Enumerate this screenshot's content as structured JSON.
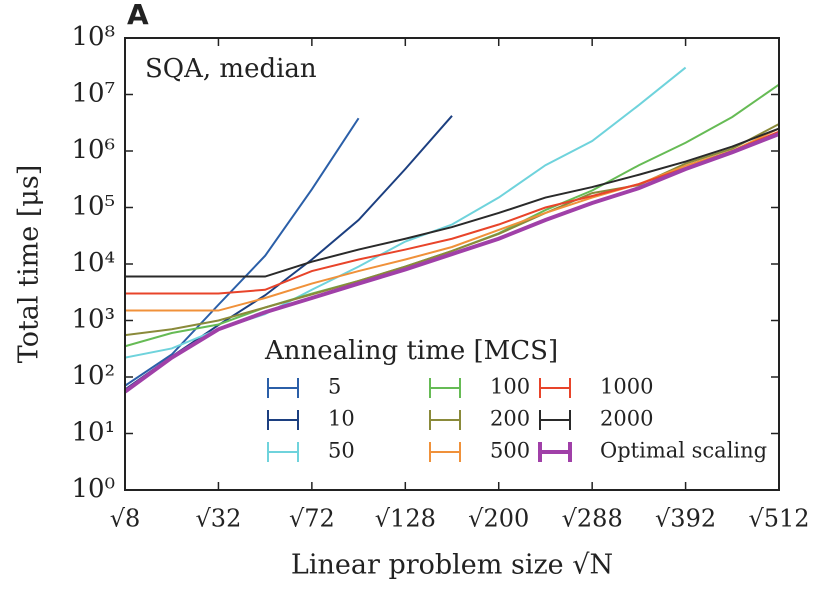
{
  "chart_data": {
    "type": "line",
    "panel_label": "A",
    "annotation": "SQA, median",
    "x_label": "Linear problem size √N",
    "y_label": "Total time [μs]",
    "legend_title": "Annealing time [MCS]",
    "log_y": true,
    "x": [
      2.828,
      4.243,
      5.657,
      7.071,
      8.485,
      9.899,
      11.314,
      12.728,
      14.142,
      15.556,
      16.971,
      18.385,
      19.799,
      21.213,
      22.627
    ],
    "xlim": [
      2.828,
      22.627
    ],
    "xticks": [
      {
        "value": 2.828,
        "label": "√8"
      },
      {
        "value": 5.657,
        "label": "√32"
      },
      {
        "value": 8.485,
        "label": "√72"
      },
      {
        "value": 11.314,
        "label": "√128"
      },
      {
        "value": 14.142,
        "label": "√200"
      },
      {
        "value": 16.971,
        "label": "√288"
      },
      {
        "value": 19.799,
        "label": "√392"
      },
      {
        "value": 22.627,
        "label": "√512"
      }
    ],
    "ylim": [
      1,
      100000000
    ],
    "yticks": [
      {
        "value": 1,
        "label": "10⁰"
      },
      {
        "value": 10,
        "label": "10¹"
      },
      {
        "value": 100,
        "label": "10²"
      },
      {
        "value": 1000,
        "label": "10³"
      },
      {
        "value": 10000,
        "label": "10⁴"
      },
      {
        "value": 100000,
        "label": "10⁵"
      },
      {
        "value": 1000000,
        "label": "10⁶"
      },
      {
        "value": 10000000,
        "label": "10⁷"
      },
      {
        "value": 100000000,
        "label": "10⁸"
      }
    ],
    "series": [
      {
        "name": "5",
        "color": "#2b5fa8",
        "values": [
          70,
          250,
          1900,
          14000,
          210000,
          3800000,
          null,
          null,
          null,
          null,
          null,
          null,
          null,
          null,
          null
        ]
      },
      {
        "name": "10",
        "color": "#1c3f80",
        "values": [
          60,
          230,
          830,
          2800,
          12000,
          60000,
          480000,
          4200000,
          null,
          null,
          null,
          null,
          null,
          null,
          null
        ]
      },
      {
        "name": "50",
        "color": "#6fd3dc",
        "values": [
          220,
          320,
          700,
          1300,
          3500,
          9000,
          25000,
          50000,
          150000,
          560000,
          1500000,
          6500000,
          30000000,
          null,
          null
        ]
      },
      {
        "name": "100",
        "color": "#66bb55",
        "values": [
          350,
          600,
          850,
          1700,
          3000,
          5000,
          9000,
          17000,
          35000,
          90000,
          200000,
          560000,
          1400000,
          4000000,
          15000000
        ]
      },
      {
        "name": "200",
        "color": "#8a8a3a",
        "values": [
          550,
          700,
          1000,
          1700,
          2900,
          5000,
          9000,
          17000,
          34000,
          80000,
          180000,
          250000,
          600000,
          1100000,
          3000000
        ]
      },
      {
        "name": "500",
        "color": "#f0913a",
        "values": [
          1500,
          1500,
          1500,
          2500,
          4500,
          7500,
          12000,
          20000,
          40000,
          80000,
          150000,
          260000,
          550000,
          1000000,
          2500000
        ]
      },
      {
        "name": "1000",
        "color": "#e8442a",
        "values": [
          3000,
          3000,
          3000,
          3500,
          7500,
          12000,
          18000,
          28000,
          50000,
          100000,
          160000,
          260000,
          500000,
          1000000,
          2200000
        ]
      },
      {
        "name": "2000",
        "color": "#2a2a2a",
        "values": [
          6000,
          6000,
          6000,
          6000,
          11000,
          18000,
          28000,
          45000,
          80000,
          150000,
          230000,
          380000,
          650000,
          1200000,
          2500000
        ]
      },
      {
        "name": "Optimal scaling",
        "color": "#a040a8",
        "values": [
          55,
          220,
          700,
          1400,
          2500,
          4500,
          8000,
          15000,
          28000,
          60000,
          120000,
          220000,
          480000,
          950000,
          2000000
        ]
      }
    ]
  }
}
